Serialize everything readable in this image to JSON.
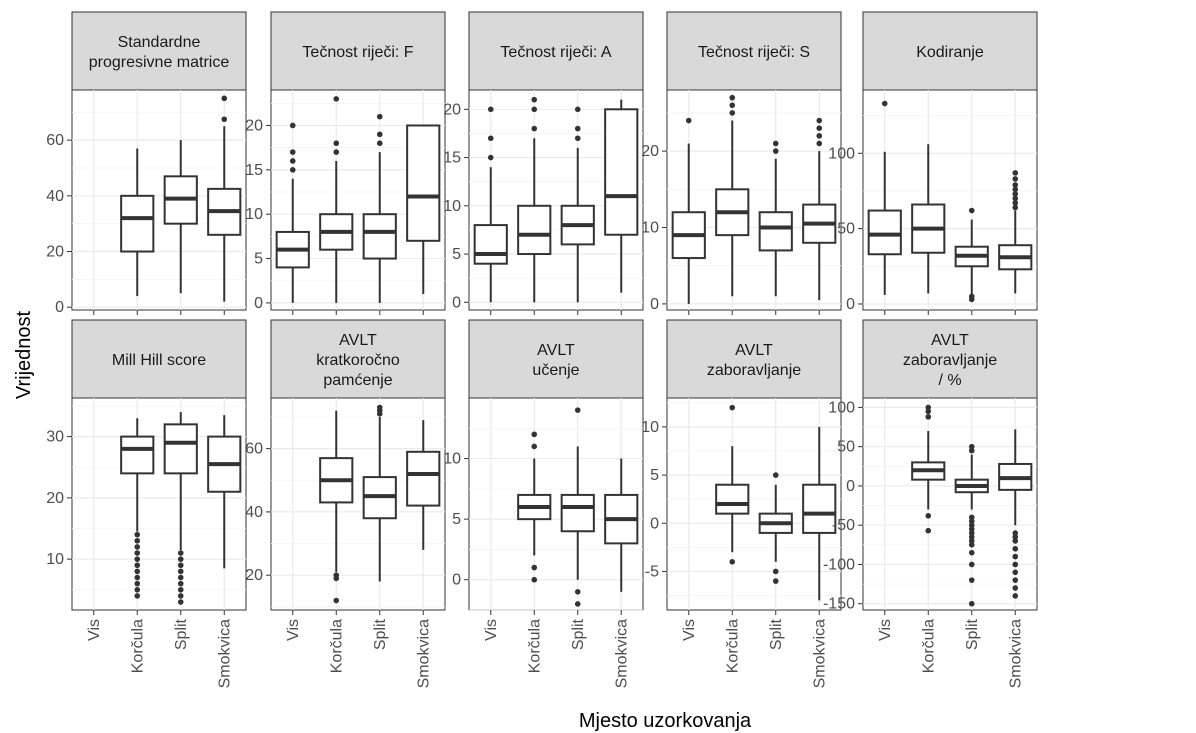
{
  "chart_data": {
    "type": "boxplot",
    "xlabel": "Mjesto uzorkovanja",
    "ylabel": "Vrijednost",
    "categories": [
      "Vis",
      "Korčula",
      "Split",
      "Smokvica"
    ],
    "grid": true,
    "panels": [
      {
        "title": [
          "Standardne",
          "progresivne matrice"
        ],
        "ylim": [
          -1,
          78
        ],
        "yticks": [
          0,
          20,
          40,
          60
        ],
        "boxes": [
          null,
          {
            "min": 4,
            "q1": 20,
            "median": 32,
            "q3": 40,
            "max": 57,
            "outliers": []
          },
          {
            "min": 5,
            "q1": 30,
            "median": 39,
            "q3": 47,
            "max": 60,
            "outliers": []
          },
          {
            "min": 2,
            "q1": 26,
            "median": 34.5,
            "q3": 42.5,
            "max": 65,
            "outliers": [
              67.5,
              75
            ]
          }
        ]
      },
      {
        "title": [
          "Tečnost riječi: F"
        ],
        "ylim": [
          -0.8,
          24
        ],
        "yticks": [
          0,
          5,
          10,
          15,
          20
        ],
        "boxes": [
          {
            "min": 0,
            "q1": 4,
            "median": 6,
            "q3": 8,
            "max": 14,
            "outliers": [
              15,
              16,
              17,
              20
            ]
          },
          {
            "min": 0,
            "q1": 6,
            "median": 8,
            "q3": 10,
            "max": 16,
            "outliers": [
              17,
              18,
              23
            ]
          },
          {
            "min": 0,
            "q1": 5,
            "median": 8,
            "q3": 10,
            "max": 17,
            "outliers": [
              18,
              19,
              21
            ]
          },
          {
            "min": 1,
            "q1": 7,
            "median": 12,
            "q3": 20,
            "max": 20,
            "outliers": []
          }
        ]
      },
      {
        "title": [
          "Tečnost riječi: A"
        ],
        "ylim": [
          -0.8,
          22
        ],
        "yticks": [
          0,
          5,
          10,
          15,
          20
        ],
        "boxes": [
          {
            "min": 0,
            "q1": 4,
            "median": 5,
            "q3": 8,
            "max": 14,
            "outliers": [
              15,
              17,
              20
            ]
          },
          {
            "min": 0,
            "q1": 5,
            "median": 7,
            "q3": 10,
            "max": 17,
            "outliers": [
              18,
              20,
              21
            ]
          },
          {
            "min": 0,
            "q1": 6,
            "median": 8,
            "q3": 10,
            "max": 16,
            "outliers": [
              17,
              18,
              20
            ]
          },
          {
            "min": 1,
            "q1": 7,
            "median": 11,
            "q3": 20,
            "max": 21,
            "outliers": []
          }
        ]
      },
      {
        "title": [
          "Tečnost riječi: S"
        ],
        "ylim": [
          -0.8,
          28
        ],
        "yticks": [
          0,
          10,
          20
        ],
        "boxes": [
          {
            "min": 0,
            "q1": 6,
            "median": 9,
            "q3": 12,
            "max": 21,
            "outliers": [
              24
            ]
          },
          {
            "min": 1,
            "q1": 9,
            "median": 12,
            "q3": 15,
            "max": 24,
            "outliers": [
              25,
              26,
              27
            ]
          },
          {
            "min": 1,
            "q1": 7,
            "median": 10,
            "q3": 12,
            "max": 19,
            "outliers": [
              20,
              21
            ]
          },
          {
            "min": 0.5,
            "q1": 8,
            "median": 10.5,
            "q3": 13,
            "max": 20,
            "outliers": [
              21,
              22,
              23,
              24
            ]
          }
        ]
      },
      {
        "title": [
          "Kodiranje"
        ],
        "ylim": [
          -4,
          142
        ],
        "yticks": [
          0,
          50,
          100
        ],
        "boxes": [
          {
            "min": 6,
            "q1": 33,
            "median": 46,
            "q3": 62,
            "max": 101,
            "outliers": [
              133
            ]
          },
          {
            "min": 7,
            "q1": 34,
            "median": 50,
            "q3": 66,
            "max": 106,
            "outliers": []
          },
          {
            "min": 6,
            "q1": 25,
            "median": 32,
            "q3": 38,
            "max": 56,
            "outliers": [
              3,
              5,
              62
            ]
          },
          {
            "min": 7,
            "q1": 23,
            "median": 31,
            "q3": 39,
            "max": 62,
            "outliers": [
              64,
              67,
              70,
              73,
              76,
              79,
              83,
              87
            ]
          }
        ]
      },
      {
        "title": [
          "Mill Hill score"
        ],
        "ylim": [
          1.7,
          36.3
        ],
        "yticks": [
          10,
          20,
          30
        ],
        "boxes": [
          null,
          {
            "min": 14.5,
            "q1": 24,
            "median": 28,
            "q3": 30,
            "max": 33,
            "outliers": [
              4,
              5,
              6,
              7,
              8,
              9,
              10,
              11,
              12,
              13,
              14
            ]
          },
          {
            "min": 11.5,
            "q1": 24,
            "median": 29,
            "q3": 32,
            "max": 34,
            "outliers": [
              3,
              4,
              5,
              6,
              7,
              8,
              9,
              10,
              11
            ]
          },
          {
            "min": 8.5,
            "q1": 21,
            "median": 25.5,
            "q3": 30,
            "max": 33.5,
            "outliers": []
          }
        ]
      },
      {
        "title": [
          "AVLT",
          "kratkoročno",
          "pamćenje"
        ],
        "ylim": [
          9,
          76
        ],
        "yticks": [
          20,
          40,
          60
        ],
        "boxes": [
          null,
          {
            "min": 21,
            "q1": 43,
            "median": 50,
            "q3": 57,
            "max": 72,
            "outliers": [
              12,
              19,
              20
            ]
          },
          {
            "min": 18,
            "q1": 38,
            "median": 45,
            "q3": 51,
            "max": 70,
            "outliers": [
              71,
              72,
              73
            ]
          },
          {
            "min": 28,
            "q1": 42,
            "median": 52,
            "q3": 59,
            "max": 69,
            "outliers": []
          }
        ]
      },
      {
        "title": [
          "AVLT",
          "učenje"
        ],
        "ylim": [
          -2.5,
          15
        ],
        "yticks": [
          0,
          5,
          10
        ],
        "boxes": [
          null,
          {
            "min": 2,
            "q1": 5,
            "median": 6,
            "q3": 7,
            "max": 10,
            "outliers": [
              0,
              1,
              11,
              12
            ]
          },
          {
            "min": 0,
            "q1": 4,
            "median": 6,
            "q3": 7,
            "max": 11,
            "outliers": [
              -1,
              -2,
              14
            ]
          },
          {
            "min": -1,
            "q1": 3,
            "median": 5,
            "q3": 7,
            "max": 10,
            "outliers": []
          }
        ]
      },
      {
        "title": [
          "AVLT",
          "zaboravljanje"
        ],
        "ylim": [
          -9,
          13
        ],
        "yticks": [
          -5,
          0,
          5,
          10
        ],
        "boxes": [
          null,
          {
            "min": -3,
            "q1": 1,
            "median": 2,
            "q3": 4,
            "max": 8,
            "outliers": [
              -4,
              12
            ]
          },
          {
            "min": -4,
            "q1": -1,
            "median": 0,
            "q3": 1,
            "max": 4,
            "outliers": [
              -6,
              -5,
              5
            ]
          },
          {
            "min": -8,
            "q1": -1,
            "median": 1,
            "q3": 4,
            "max": 10,
            "outliers": []
          }
        ]
      },
      {
        "title": [
          "AVLT",
          "zaboravljanje",
          "/ %"
        ],
        "ylim": [
          -158,
          112
        ],
        "yticks": [
          -150,
          -100,
          -50,
          0,
          50,
          100
        ],
        "yticklabels": [
          "-150",
          "-100",
          "-50",
          "0",
          "50",
          "100"
        ],
        "boxes": [
          null,
          {
            "min": -30,
            "q1": 8,
            "median": 20,
            "q3": 30,
            "max": 70,
            "outliers": [
              -38,
              -57,
              88,
              95,
              100
            ]
          },
          {
            "min": -30,
            "q1": -8,
            "median": 0,
            "q3": 8,
            "max": 40,
            "outliers": [
              -40,
              -45,
              -50,
              -55,
              -60,
              -65,
              -70,
              -75,
              -85,
              -100,
              -120,
              -150,
              45,
              50
            ]
          },
          {
            "min": -50,
            "q1": -5,
            "median": 10,
            "q3": 28,
            "max": 72,
            "outliers": [
              -60,
              -65,
              -70,
              -80,
              -90,
              -100,
              -110,
              -120,
              -130,
              -140
            ]
          }
        ]
      }
    ]
  }
}
